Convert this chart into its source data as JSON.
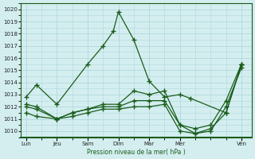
{
  "background_color": "#d4eef0",
  "grid_color": "#b0d8dc",
  "line_color": "#1a5c1a",
  "xlabel": "Pression niveau de la mer( hPa )",
  "ylim": [
    1009.5,
    1020.5
  ],
  "yticks": [
    1010,
    1011,
    1012,
    1013,
    1014,
    1015,
    1016,
    1017,
    1018,
    1019,
    1020
  ],
  "x_labels": [
    "Lun",
    "Jeu",
    "Sam",
    "Dim",
    "Mar",
    "Mer",
    "Ven"
  ],
  "x_positions": [
    0,
    3,
    6,
    9,
    12,
    15,
    21
  ],
  "line1_x": [
    0,
    1,
    3,
    6,
    7.5,
    8.5,
    9,
    10.5,
    12,
    13.5,
    15,
    16,
    19.5,
    21
  ],
  "line1_y": [
    1012.8,
    1013.8,
    1012.2,
    1015.5,
    1017.0,
    1018.2,
    1019.8,
    1017.5,
    1014.1,
    1012.8,
    1013.0,
    1012.7,
    1011.5,
    1015.5
  ],
  "line2_x": [
    0,
    1,
    3,
    4.5,
    6,
    7.5,
    9,
    10.5,
    12,
    13.5,
    15,
    16.5,
    18,
    19.5,
    21
  ],
  "line2_y": [
    1012.2,
    1012.0,
    1011.0,
    1011.5,
    1011.8,
    1012.2,
    1012.2,
    1013.3,
    1013.0,
    1013.3,
    1010.5,
    1009.8,
    1010.2,
    1011.5,
    1015.5
  ],
  "line3_x": [
    0,
    1,
    3,
    4.5,
    6,
    7.5,
    9,
    10.5,
    12,
    13.5,
    15,
    16.5,
    18,
    19.5,
    21
  ],
  "line3_y": [
    1012.0,
    1011.8,
    1011.0,
    1011.5,
    1011.8,
    1012.0,
    1012.0,
    1012.5,
    1012.5,
    1012.5,
    1010.5,
    1010.2,
    1010.5,
    1012.5,
    1015.5
  ],
  "line4_x": [
    0,
    1,
    3,
    4.5,
    6,
    7.5,
    9,
    10.5,
    12,
    13.5,
    15,
    16.5,
    18,
    19.5,
    21
  ],
  "line4_y": [
    1011.5,
    1011.2,
    1011.0,
    1011.2,
    1011.5,
    1011.8,
    1011.8,
    1012.0,
    1012.0,
    1012.2,
    1010.0,
    1009.8,
    1010.0,
    1012.0,
    1015.2
  ]
}
